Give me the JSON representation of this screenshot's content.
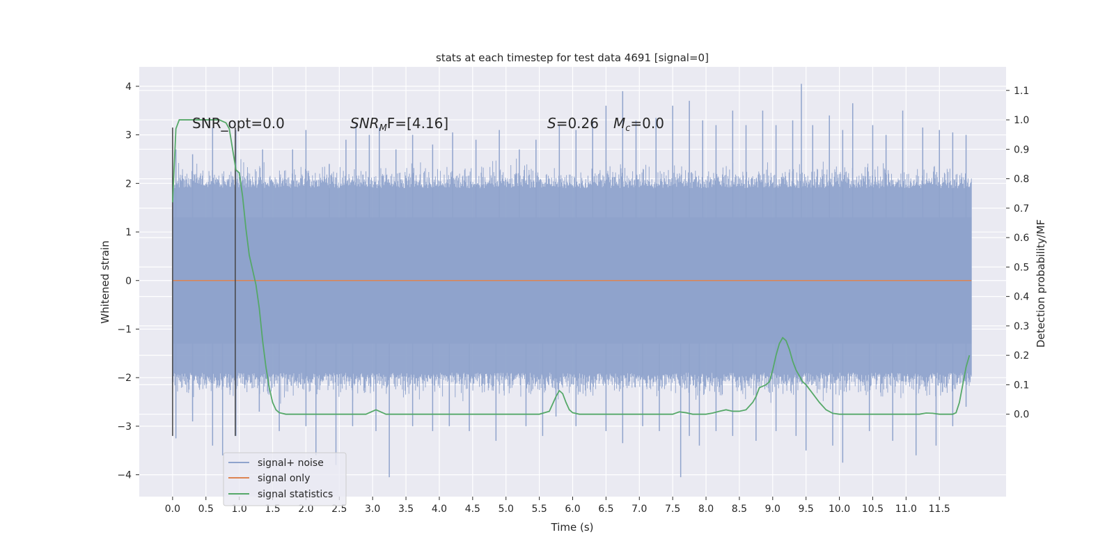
{
  "chart_data": {
    "type": "line",
    "title": "stats at each timestep for test data 4691 [signal=0]",
    "xlabel": "Time (s)",
    "ylabel_left": "Whitened strain",
    "ylabel_right": "Detection probability/MF",
    "xlim": [
      -0.5,
      12.5
    ],
    "ylim_left": [
      -4.45,
      4.4
    ],
    "ylim_right": [
      -0.28,
      1.18
    ],
    "xticks": [
      0.0,
      0.5,
      1.0,
      1.5,
      2.0,
      2.5,
      3.0,
      3.5,
      4.0,
      4.5,
      5.0,
      5.5,
      6.0,
      6.5,
      7.0,
      7.5,
      8.0,
      8.5,
      9.0,
      9.5,
      10.0,
      10.5,
      11.0,
      11.5
    ],
    "xtick_labels": [
      "0.0",
      "0.5",
      "1.0",
      "1.5",
      "2.0",
      "2.5",
      "3.0",
      "3.5",
      "4.0",
      "4.5",
      "5.0",
      "5.5",
      "6.0",
      "6.5",
      "7.0",
      "7.5",
      "8.0",
      "8.5",
      "9.0",
      "9.5",
      "10.0",
      "10.5",
      "11.0",
      "11.5"
    ],
    "yticks_left": [
      -4,
      -3,
      -2,
      -1,
      0,
      1,
      2,
      3,
      4
    ],
    "ytick_labels_left": [
      "−4",
      "−3",
      "−2",
      "−1",
      "0",
      "1",
      "2",
      "3",
      "4"
    ],
    "yticks_right": [
      0.0,
      0.1,
      0.2,
      0.3,
      0.4,
      0.5,
      0.6,
      0.7,
      0.8,
      0.9,
      1.0,
      1.1
    ],
    "ytick_labels_right": [
      "0.0",
      "0.1",
      "0.2",
      "0.3",
      "0.4",
      "0.5",
      "0.6",
      "0.7",
      "0.8",
      "0.9",
      "1.0",
      "1.1"
    ],
    "grid": true,
    "legend_position": "lower-left",
    "annotations": {
      "snr_opt": "SNR_opt=0.0",
      "snr_mf_main": "SNR",
      "snr_mf_sub": "M",
      "snr_mf_tail": "F=[4.16]",
      "s_main": "S",
      "s_tail": "=0.26",
      "mc_main": "M",
      "mc_sub": "c",
      "mc_tail": "=0.0"
    },
    "vertical_markers": [
      0.0,
      0.94
    ],
    "noise_envelope": {
      "x_range": [
        0.0,
        11.98
      ],
      "typical_upper": 1.9,
      "typical_lower": -1.9,
      "max_value": 4.05,
      "min_value": -4.05
    },
    "series": [
      {
        "name": "signal+ noise",
        "axis": "left",
        "color": "#8fa3cc",
        "peaks_up": [
          [
            0.05,
            2.7
          ],
          [
            0.3,
            2.6
          ],
          [
            0.6,
            3.15
          ],
          [
            0.95,
            3.1
          ],
          [
            1.35,
            2.7
          ],
          [
            1.8,
            2.7
          ],
          [
            2.0,
            3.1
          ],
          [
            2.35,
            2.4
          ],
          [
            2.6,
            2.9
          ],
          [
            2.75,
            3.2
          ],
          [
            2.95,
            3.0
          ],
          [
            3.1,
            3.15
          ],
          [
            3.35,
            2.7
          ],
          [
            3.6,
            3.0
          ],
          [
            3.9,
            2.8
          ],
          [
            4.2,
            3.05
          ],
          [
            4.55,
            2.9
          ],
          [
            4.9,
            3.1
          ],
          [
            5.2,
            2.7
          ],
          [
            5.45,
            2.9
          ],
          [
            5.8,
            3.2
          ],
          [
            6.05,
            3.1
          ],
          [
            6.3,
            3.3
          ],
          [
            6.5,
            3.6
          ],
          [
            6.75,
            3.9
          ],
          [
            6.95,
            3.3
          ],
          [
            7.25,
            3.35
          ],
          [
            7.5,
            3.6
          ],
          [
            7.75,
            3.7
          ],
          [
            7.95,
            3.3
          ],
          [
            8.15,
            3.2
          ],
          [
            8.4,
            3.5
          ],
          [
            8.6,
            3.2
          ],
          [
            8.85,
            3.5
          ],
          [
            9.05,
            3.2
          ],
          [
            9.3,
            3.3
          ],
          [
            9.43,
            4.05
          ],
          [
            9.6,
            3.2
          ],
          [
            9.85,
            3.4
          ],
          [
            10.05,
            3.1
          ],
          [
            10.2,
            3.65
          ],
          [
            10.5,
            3.2
          ],
          [
            10.7,
            3.0
          ],
          [
            10.95,
            3.5
          ],
          [
            11.25,
            3.15
          ],
          [
            11.5,
            3.1
          ],
          [
            11.7,
            3.05
          ],
          [
            11.9,
            3.0
          ]
        ],
        "peaks_down": [
          [
            0.05,
            -3.25
          ],
          [
            0.3,
            -2.9
          ],
          [
            0.6,
            -3.4
          ],
          [
            0.75,
            -3.6
          ],
          [
            0.95,
            -3.2
          ],
          [
            1.3,
            -2.7
          ],
          [
            1.6,
            -3.1
          ],
          [
            2.0,
            -3.0
          ],
          [
            2.15,
            -3.6
          ],
          [
            2.45,
            -3.8
          ],
          [
            2.7,
            -3.0
          ],
          [
            3.05,
            -3.1
          ],
          [
            3.25,
            -4.05
          ],
          [
            3.6,
            -3.0
          ],
          [
            3.9,
            -3.1
          ],
          [
            4.15,
            -3.0
          ],
          [
            4.45,
            -3.1
          ],
          [
            4.85,
            -3.3
          ],
          [
            5.3,
            -3.0
          ],
          [
            5.55,
            -3.2
          ],
          [
            5.75,
            -2.8
          ],
          [
            6.05,
            -3.0
          ],
          [
            6.5,
            -3.1
          ],
          [
            6.75,
            -3.35
          ],
          [
            7.05,
            -3.0
          ],
          [
            7.3,
            -3.1
          ],
          [
            7.62,
            -4.05
          ],
          [
            7.75,
            -3.2
          ],
          [
            7.9,
            -3.4
          ],
          [
            8.15,
            -3.1
          ],
          [
            8.4,
            -3.2
          ],
          [
            8.75,
            -3.3
          ],
          [
            9.05,
            -3.1
          ],
          [
            9.35,
            -3.2
          ],
          [
            9.5,
            -3.5
          ],
          [
            9.9,
            -3.4
          ],
          [
            10.05,
            -3.75
          ],
          [
            10.45,
            -3.1
          ],
          [
            10.8,
            -3.3
          ],
          [
            11.15,
            -3.6
          ],
          [
            11.45,
            -3.4
          ],
          [
            11.7,
            -3.0
          ],
          [
            11.9,
            -2.6
          ]
        ]
      },
      {
        "name": "signal only",
        "axis": "left",
        "color": "#dd8452",
        "x": [
          0.0,
          11.98
        ],
        "y": [
          0.0,
          0.0
        ]
      },
      {
        "name": "signal statistics",
        "axis": "right",
        "color": "#55a868",
        "x": [
          0.0,
          0.05,
          0.1,
          0.15,
          0.2,
          0.3,
          0.4,
          0.5,
          0.6,
          0.7,
          0.8,
          0.85,
          0.9,
          0.95,
          1.0,
          1.05,
          1.1,
          1.15,
          1.2,
          1.25,
          1.3,
          1.35,
          1.4,
          1.45,
          1.5,
          1.55,
          1.6,
          1.7,
          1.8,
          2.0,
          2.5,
          2.9,
          3.0,
          3.05,
          3.1,
          3.2,
          3.3,
          3.5,
          4.0,
          4.5,
          5.0,
          5.5,
          5.65,
          5.75,
          5.8,
          5.85,
          5.9,
          5.95,
          6.0,
          6.1,
          6.3,
          6.5,
          7.0,
          7.5,
          7.6,
          7.7,
          7.8,
          7.9,
          8.0,
          8.1,
          8.2,
          8.3,
          8.4,
          8.5,
          8.6,
          8.7,
          8.75,
          8.8,
          8.9,
          8.95,
          9.0,
          9.05,
          9.1,
          9.15,
          9.2,
          9.25,
          9.3,
          9.35,
          9.4,
          9.45,
          9.5,
          9.6,
          9.7,
          9.8,
          9.9,
          10.0,
          10.2,
          10.5,
          10.8,
          11.0,
          11.2,
          11.3,
          11.4,
          11.5,
          11.6,
          11.7,
          11.75,
          11.8,
          11.85,
          11.9,
          11.95
        ],
        "y": [
          0.72,
          0.97,
          1.0,
          1.0,
          1.0,
          1.0,
          1.0,
          1.0,
          1.0,
          1.0,
          0.99,
          0.97,
          0.9,
          0.83,
          0.82,
          0.74,
          0.63,
          0.54,
          0.49,
          0.44,
          0.36,
          0.25,
          0.16,
          0.09,
          0.04,
          0.015,
          0.005,
          0.0,
          0.0,
          0.0,
          0.0,
          0.0,
          0.01,
          0.015,
          0.01,
          0.0,
          0.0,
          0.0,
          0.0,
          0.0,
          0.0,
          0.0,
          0.01,
          0.06,
          0.08,
          0.07,
          0.04,
          0.015,
          0.005,
          0.0,
          0.0,
          0.0,
          0.0,
          0.0,
          0.008,
          0.005,
          0.0,
          0.0,
          0.0,
          0.004,
          0.01,
          0.015,
          0.01,
          0.01,
          0.015,
          0.04,
          0.06,
          0.09,
          0.1,
          0.11,
          0.15,
          0.2,
          0.24,
          0.26,
          0.25,
          0.22,
          0.18,
          0.15,
          0.13,
          0.11,
          0.1,
          0.07,
          0.04,
          0.015,
          0.003,
          0.0,
          0.0,
          0.0,
          0.0,
          0.0,
          0.0,
          0.004,
          0.003,
          0.0,
          0.0,
          0.0,
          0.005,
          0.04,
          0.1,
          0.16,
          0.2
        ]
      }
    ]
  }
}
